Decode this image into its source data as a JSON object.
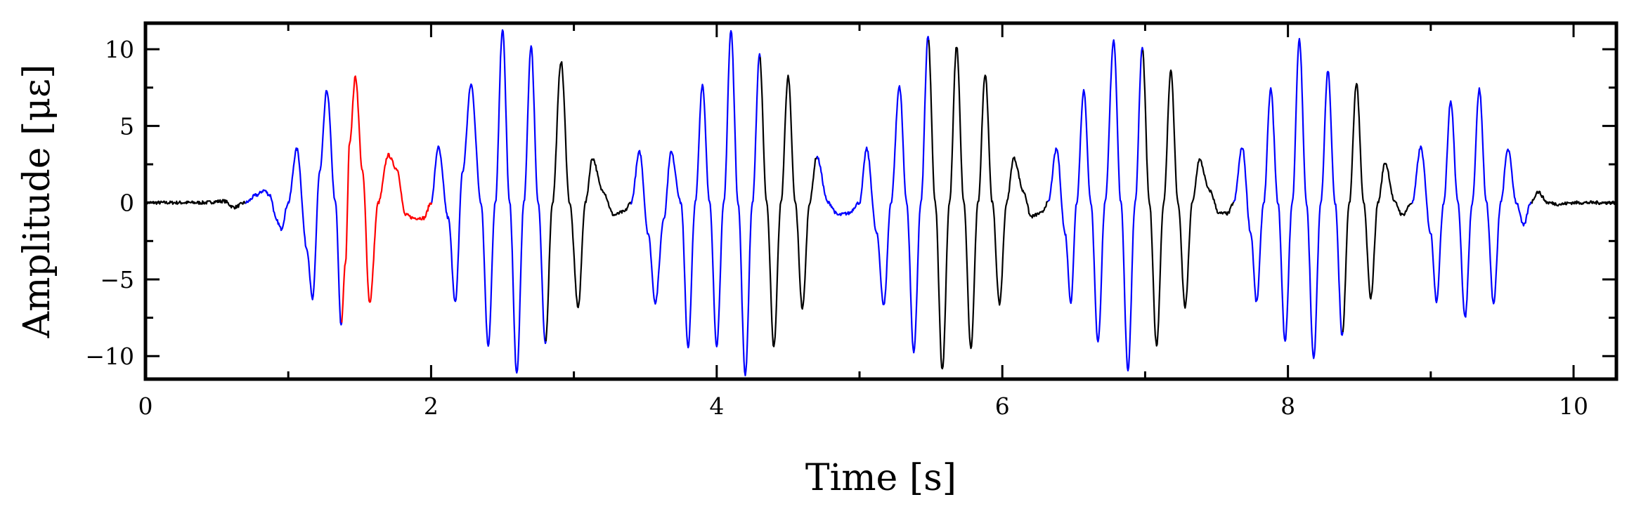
{
  "chart_data": {
    "type": "line",
    "title": "",
    "xlabel": "Time [s]",
    "ylabel": "Amplitude [με]",
    "xlim": [
      0,
      10.3
    ],
    "ylim": [
      -11.5,
      11.7
    ],
    "xticks": [
      0,
      2,
      4,
      6,
      8,
      10
    ],
    "xtick_labels": [
      "0",
      "2",
      "4",
      "6",
      "8",
      "10"
    ],
    "yticks": [
      -10,
      -5,
      0,
      5,
      10
    ],
    "ytick_labels": [
      "−10",
      "−5",
      "0",
      "5",
      "10"
    ],
    "grid": false,
    "legend": "none",
    "colors": {
      "base": "#000000",
      "highlight_a": "#0000ff",
      "highlight_b": "#ff0000"
    },
    "series": [
      {
        "color": "#000000",
        "points": [
          [
            0,
            0
          ],
          [
            0.4,
            0
          ],
          [
            0.55,
            0.1
          ],
          [
            0.62,
            -0.3
          ],
          [
            0.7,
            0
          ],
          [
            0.78,
            0.5
          ],
          [
            0.83,
            0.8
          ],
          [
            0.87,
            0.5
          ],
          [
            0.92,
            -1.2
          ],
          [
            0.95,
            -1.7
          ],
          [
            1.0,
            0
          ],
          [
            1.06,
            3.5
          ],
          [
            1.13,
            -3
          ],
          [
            1.17,
            -6.3
          ],
          [
            1.22,
            2
          ],
          [
            1.27,
            7.3
          ],
          [
            1.33,
            0
          ],
          [
            1.37,
            -8
          ],
          [
            1.4,
            -4
          ],
          [
            1.43,
            4
          ],
          [
            1.47,
            8.2
          ],
          [
            1.52,
            2
          ],
          [
            1.57,
            -6.5
          ],
          [
            1.63,
            0
          ],
          [
            1.7,
            3.1
          ],
          [
            1.76,
            2.2
          ],
          [
            1.82,
            -0.8
          ],
          [
            1.88,
            -1
          ],
          [
            1.95,
            -1
          ],
          [
            2.0,
            0
          ],
          [
            2.05,
            3.6
          ],
          [
            2.12,
            -1
          ],
          [
            2.17,
            -6.5
          ],
          [
            2.22,
            2
          ],
          [
            2.28,
            7.7
          ],
          [
            2.35,
            0
          ],
          [
            2.4,
            -9.3
          ],
          [
            2.45,
            0
          ],
          [
            2.5,
            11.3
          ],
          [
            2.55,
            0
          ],
          [
            2.6,
            -11.2
          ],
          [
            2.65,
            0
          ],
          [
            2.7,
            10.2
          ],
          [
            2.75,
            0
          ],
          [
            2.8,
            -9.2
          ],
          [
            2.85,
            0
          ],
          [
            2.91,
            9.2
          ],
          [
            2.97,
            0
          ],
          [
            3.03,
            -6.8
          ],
          [
            3.08,
            0
          ],
          [
            3.13,
            2.9
          ],
          [
            3.2,
            0.8
          ],
          [
            3.28,
            -0.8
          ],
          [
            3.35,
            -0.6
          ],
          [
            3.4,
            0
          ],
          [
            3.46,
            3.3
          ],
          [
            3.52,
            -2
          ],
          [
            3.57,
            -6.5
          ],
          [
            3.63,
            -1
          ],
          [
            3.68,
            3.3
          ],
          [
            3.75,
            0
          ],
          [
            3.8,
            -9.4
          ],
          [
            3.85,
            0
          ],
          [
            3.9,
            7.7
          ],
          [
            3.95,
            0
          ],
          [
            4.0,
            -9.3
          ],
          [
            4.05,
            0
          ],
          [
            4.1,
            11.2
          ],
          [
            4.15,
            0
          ],
          [
            4.2,
            -11.2
          ],
          [
            4.25,
            0
          ],
          [
            4.3,
            9.6
          ],
          [
            4.35,
            0
          ],
          [
            4.4,
            -9.4
          ],
          [
            4.45,
            0
          ],
          [
            4.5,
            8.2
          ],
          [
            4.55,
            0
          ],
          [
            4.6,
            -6.9
          ],
          [
            4.65,
            0
          ],
          [
            4.7,
            3
          ],
          [
            4.78,
            0
          ],
          [
            4.85,
            -0.8
          ],
          [
            4.92,
            -0.7
          ],
          [
            5.0,
            0
          ],
          [
            5.05,
            3.5
          ],
          [
            5.12,
            -2
          ],
          [
            5.17,
            -6.7
          ],
          [
            5.22,
            0
          ],
          [
            5.28,
            7.6
          ],
          [
            5.33,
            0
          ],
          [
            5.38,
            -9.8
          ],
          [
            5.43,
            0
          ],
          [
            5.48,
            10.8
          ],
          [
            5.53,
            0
          ],
          [
            5.58,
            -10.9
          ],
          [
            5.63,
            0
          ],
          [
            5.68,
            10.2
          ],
          [
            5.73,
            0
          ],
          [
            5.78,
            -9.5
          ],
          [
            5.83,
            0
          ],
          [
            5.88,
            8.4
          ],
          [
            5.93,
            0
          ],
          [
            5.98,
            -6.6
          ],
          [
            6.03,
            0
          ],
          [
            6.08,
            2.9
          ],
          [
            6.15,
            0.7
          ],
          [
            6.2,
            -0.9
          ],
          [
            6.27,
            -0.7
          ],
          [
            6.32,
            0
          ],
          [
            6.38,
            3.5
          ],
          [
            6.44,
            -2
          ],
          [
            6.48,
            -6.5
          ],
          [
            6.52,
            0
          ],
          [
            6.57,
            7.3
          ],
          [
            6.62,
            0
          ],
          [
            6.67,
            -9.1
          ],
          [
            6.72,
            0
          ],
          [
            6.78,
            10.6
          ],
          [
            6.83,
            0
          ],
          [
            6.88,
            -10.9
          ],
          [
            6.93,
            0
          ],
          [
            6.98,
            10.1
          ],
          [
            7.03,
            0
          ],
          [
            7.08,
            -9.3
          ],
          [
            7.13,
            0
          ],
          [
            7.18,
            8.6
          ],
          [
            7.23,
            0
          ],
          [
            7.28,
            -6.8
          ],
          [
            7.33,
            0
          ],
          [
            7.38,
            2.8
          ],
          [
            7.45,
            0.8
          ],
          [
            7.52,
            -0.7
          ],
          [
            7.58,
            -0.7
          ],
          [
            7.62,
            0
          ],
          [
            7.68,
            3.6
          ],
          [
            7.74,
            -2
          ],
          [
            7.78,
            -6.5
          ],
          [
            7.83,
            0
          ],
          [
            7.88,
            7.4
          ],
          [
            7.93,
            0
          ],
          [
            7.98,
            -9
          ],
          [
            8.03,
            0
          ],
          [
            8.08,
            10.6
          ],
          [
            8.13,
            0
          ],
          [
            8.18,
            -10.2
          ],
          [
            8.23,
            0
          ],
          [
            8.28,
            8.6
          ],
          [
            8.33,
            0
          ],
          [
            8.38,
            -8.7
          ],
          [
            8.43,
            0
          ],
          [
            8.48,
            7.8
          ],
          [
            8.53,
            0
          ],
          [
            8.58,
            -6.2
          ],
          [
            8.63,
            0
          ],
          [
            8.68,
            2.6
          ],
          [
            8.75,
            0
          ],
          [
            8.8,
            -0.8
          ],
          [
            8.87,
            0
          ],
          [
            8.93,
            3.6
          ],
          [
            9.0,
            -2
          ],
          [
            9.04,
            -6.4
          ],
          [
            9.09,
            0
          ],
          [
            9.14,
            6.6
          ],
          [
            9.19,
            0
          ],
          [
            9.24,
            -7.5
          ],
          [
            9.29,
            0
          ],
          [
            9.34,
            7.4
          ],
          [
            9.39,
            0
          ],
          [
            9.44,
            -6.6
          ],
          [
            9.49,
            0
          ],
          [
            9.54,
            3.5
          ],
          [
            9.6,
            0
          ],
          [
            9.65,
            -1.5
          ],
          [
            9.7,
            0
          ],
          [
            9.75,
            0.7
          ],
          [
            9.82,
            0
          ],
          [
            9.9,
            -0.1
          ],
          [
            10.0,
            0
          ],
          [
            10.3,
            0
          ]
        ]
      }
    ],
    "highlights": [
      {
        "color": "#0000ff",
        "x_range": [
          0.7,
          1.37
        ]
      },
      {
        "color": "#ff0000",
        "x_range": [
          1.37,
          2.0
        ]
      },
      {
        "color": "#0000ff",
        "x_range": [
          2.0,
          2.8
        ]
      },
      {
        "color": "#0000ff",
        "x_range": [
          3.4,
          4.3
        ]
      },
      {
        "color": "#0000ff",
        "x_range": [
          4.7,
          5.48
        ]
      },
      {
        "color": "#0000ff",
        "x_range": [
          6.32,
          6.98
        ]
      },
      {
        "color": "#0000ff",
        "x_range": [
          7.62,
          8.38
        ]
      },
      {
        "color": "#0000ff",
        "x_range": [
          8.87,
          9.7
        ]
      }
    ]
  }
}
